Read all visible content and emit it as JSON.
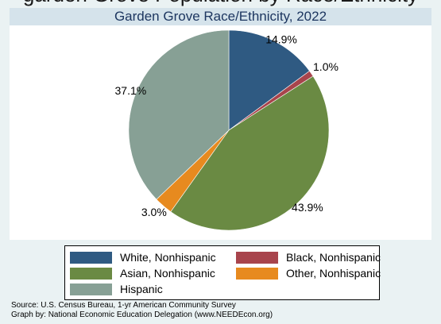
{
  "header": {
    "top_banner": "garden Grove Population by Race/Ethnicity",
    "chart_title": "Garden Grove Race/Ethnicity, 2022"
  },
  "chart_data": {
    "type": "pie",
    "title": "Garden Grove Race/Ethnicity, 2022",
    "start_angle_deg": 90,
    "direction": "clockwise",
    "slices": [
      {
        "name": "White, Nonhispanic",
        "value": 14.9,
        "label": "14.9%",
        "color": "#2f5a82"
      },
      {
        "name": "Black, Nonhispanic",
        "value": 1.0,
        "label": "1.0%",
        "color": "#a8444c"
      },
      {
        "name": "Asian, Nonhispanic",
        "value": 43.9,
        "label": "43.9%",
        "color": "#6a8a43"
      },
      {
        "name": "Other, Nonhispanic",
        "value": 3.0,
        "label": "3.0%",
        "color": "#e78a1f"
      },
      {
        "name": "Hispanic",
        "value": 37.1,
        "label": "37.1%",
        "color": "#87a095"
      }
    ],
    "legend_position": "bottom"
  },
  "legend": {
    "items": [
      {
        "label": "White, Nonhispanic",
        "color": "#2f5a82"
      },
      {
        "label": "Black, Nonhispanic",
        "color": "#a8444c"
      },
      {
        "label": "Asian, Nonhispanic",
        "color": "#6a8a43"
      },
      {
        "label": "Other, Nonhispanic",
        "color": "#e78a1f"
      },
      {
        "label": "Hispanic",
        "color": "#87a095"
      }
    ]
  },
  "footer": {
    "source": "Source:  U.S. Census Bureau, 1-yr American Community Survey",
    "credit": "Graph by: National Economic Education Delegation (www.NEEDEcon.org)"
  }
}
